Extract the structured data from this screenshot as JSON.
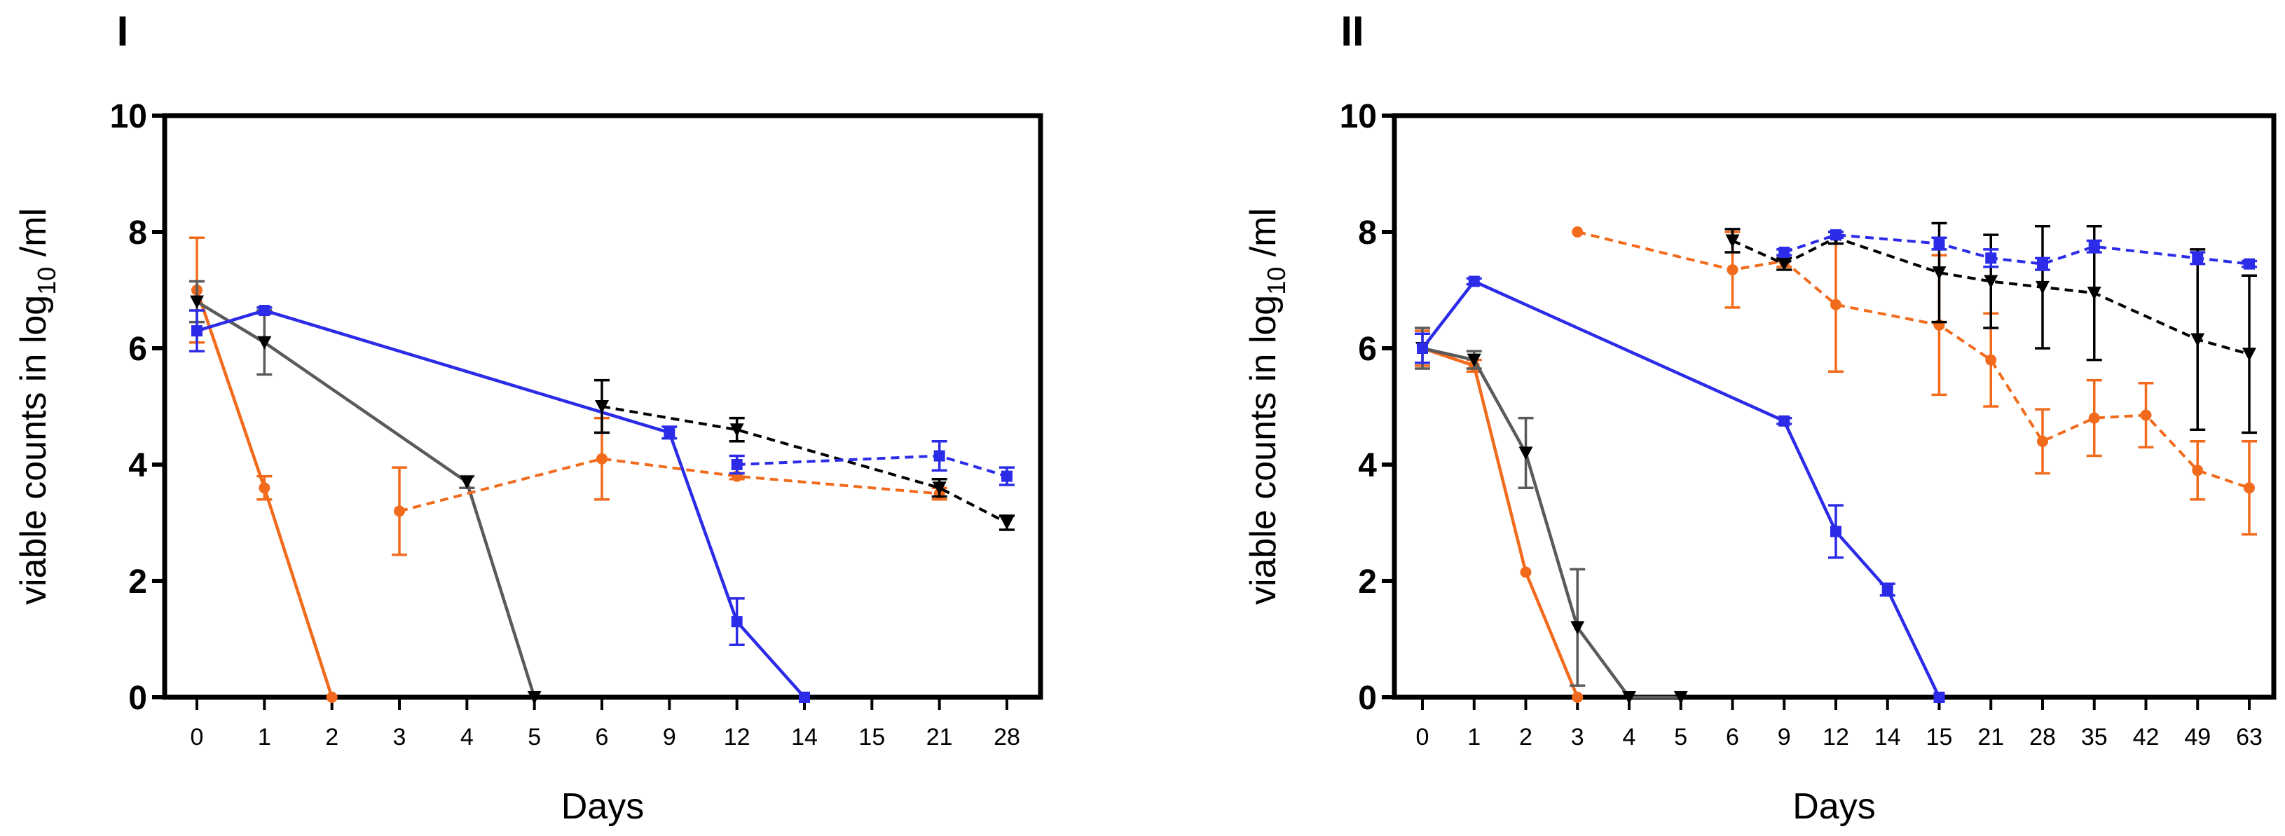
{
  "chart_data": [
    {
      "type": "line",
      "panel_label": "I",
      "xlabel": "Days",
      "ylabel_prefix": "viable counts in log",
      "ylabel_sub": "10",
      "ylabel_suffix": " /ml",
      "ylim": [
        0,
        10
      ],
      "yticks": [
        "0",
        "2",
        "4",
        "6",
        "8",
        "10"
      ],
      "categories": [
        "0",
        "1",
        "2",
        "3",
        "4",
        "5",
        "6",
        "9",
        "12",
        "14",
        "15",
        "21",
        "28"
      ],
      "series": [
        {
          "name": "orange-solid",
          "color": "#F26B1D",
          "dash": false,
          "marker": "circle",
          "points": [
            {
              "x": "0",
              "y": 7.0,
              "err": 0.9
            },
            {
              "x": "1",
              "y": 3.6,
              "err": 0.2
            },
            {
              "x": "2",
              "y": 0.0,
              "err": 0
            }
          ]
        },
        {
          "name": "gray-solid",
          "color": "#5a5a5a",
          "dash": false,
          "marker": "triangle",
          "points": [
            {
              "x": "0",
              "y": 6.8,
              "err": 0.35
            },
            {
              "x": "1",
              "y": 6.1,
              "err": 0.55
            },
            {
              "x": "4",
              "y": 3.7,
              "err": 0.1
            },
            {
              "x": "5",
              "y": 0.0,
              "err": 0
            }
          ]
        },
        {
          "name": "blue-solid",
          "color": "#2B2BE8",
          "dash": false,
          "marker": "square",
          "points": [
            {
              "x": "0",
              "y": 6.3,
              "err": 0.35
            },
            {
              "x": "1",
              "y": 6.65,
              "err": 0.05
            },
            {
              "x": "9",
              "y": 4.55,
              "err": 0.1
            },
            {
              "x": "12",
              "y": 1.3,
              "err": 0.4
            },
            {
              "x": "14",
              "y": 0.0,
              "err": 0
            }
          ]
        },
        {
          "name": "orange-dashed",
          "color": "#F26B1D",
          "dash": true,
          "marker": "circle",
          "points": [
            {
              "x": "3",
              "y": 3.2,
              "err": 0.75
            },
            {
              "x": "6",
              "y": 4.1,
              "err": 0.7
            },
            {
              "x": "12",
              "y": 3.8,
              "err": 0.05
            },
            {
              "x": "21",
              "y": 3.5,
              "err": 0.1
            }
          ]
        },
        {
          "name": "black-dashed",
          "color": "#000000",
          "dash": true,
          "marker": "triangle",
          "points": [
            {
              "x": "6",
              "y": 5.0,
              "err": 0.45
            },
            {
              "x": "12",
              "y": 4.6,
              "err": 0.2
            },
            {
              "x": "21",
              "y": 3.6,
              "err": 0.15
            },
            {
              "x": "28",
              "y": 3.0,
              "err": 0.12
            }
          ]
        },
        {
          "name": "blue-dashed",
          "color": "#2B2BE8",
          "dash": true,
          "marker": "square",
          "points": [
            {
              "x": "12",
              "y": 4.0,
              "err": 0.15
            },
            {
              "x": "21",
              "y": 4.15,
              "err": 0.25
            },
            {
              "x": "28",
              "y": 3.8,
              "err": 0.15
            }
          ]
        }
      ]
    },
    {
      "type": "line",
      "panel_label": "II",
      "xlabel": "Days",
      "ylabel_prefix": "viable counts in log",
      "ylabel_sub": "10",
      "ylabel_suffix": " /ml",
      "ylim": [
        0,
        10
      ],
      "yticks": [
        "0",
        "2",
        "4",
        "6",
        "8",
        "10"
      ],
      "categories": [
        "0",
        "1",
        "2",
        "3",
        "4",
        "5",
        "6",
        "9",
        "12",
        "14",
        "15",
        "21",
        "28",
        "35",
        "42",
        "49",
        "63"
      ],
      "series": [
        {
          "name": "orange-solid",
          "color": "#F26B1D",
          "dash": false,
          "marker": "circle",
          "points": [
            {
              "x": "0",
              "y": 6.0,
              "err": 0.3
            },
            {
              "x": "1",
              "y": 5.7,
              "err": 0.1
            },
            {
              "x": "2",
              "y": 2.15,
              "err": 0
            },
            {
              "x": "3",
              "y": 0.0,
              "err": 0
            }
          ]
        },
        {
          "name": "gray-solid",
          "color": "#5a5a5a",
          "dash": false,
          "marker": "triangle",
          "points": [
            {
              "x": "0",
              "y": 6.0,
              "err": 0.35
            },
            {
              "x": "1",
              "y": 5.8,
              "err": 0.15
            },
            {
              "x": "2",
              "y": 4.2,
              "err": 0.6
            },
            {
              "x": "3",
              "y": 1.2,
              "err": 1.0
            },
            {
              "x": "4",
              "y": 0.0,
              "err": 0
            },
            {
              "x": "5",
              "y": 0.0,
              "err": 0
            }
          ]
        },
        {
          "name": "blue-solid",
          "color": "#2B2BE8",
          "dash": false,
          "marker": "square",
          "points": [
            {
              "x": "0",
              "y": 6.0,
              "err": 0.25
            },
            {
              "x": "1",
              "y": 7.15,
              "err": 0.05
            },
            {
              "x": "9",
              "y": 4.75,
              "err": 0.05
            },
            {
              "x": "12",
              "y": 2.85,
              "err": 0.45
            },
            {
              "x": "14",
              "y": 1.85,
              "err": 0.1
            },
            {
              "x": "15",
              "y": 0.0,
              "err": 0
            }
          ]
        },
        {
          "name": "orange-dashed",
          "color": "#F26B1D",
          "dash": true,
          "marker": "circle",
          "points": [
            {
              "x": "3",
              "y": 8.0,
              "err": 0
            },
            {
              "x": "6",
              "y": 7.35,
              "err": 0.65
            },
            {
              "x": "9",
              "y": 7.5,
              "err": 0.1
            },
            {
              "x": "12",
              "y": 6.75,
              "err": 1.15
            },
            {
              "x": "15",
              "y": 6.4,
              "err": 1.2
            },
            {
              "x": "21",
              "y": 5.8,
              "err": 0.8
            },
            {
              "x": "28",
              "y": 4.4,
              "err": 0.55
            },
            {
              "x": "35",
              "y": 4.8,
              "err": 0.65
            },
            {
              "x": "42",
              "y": 4.85,
              "err": 0.55
            },
            {
              "x": "49",
              "y": 3.9,
              "err": 0.5
            },
            {
              "x": "63",
              "y": 3.6,
              "err": 0.8
            }
          ]
        },
        {
          "name": "black-dashed",
          "color": "#000000",
          "dash": true,
          "marker": "triangle",
          "points": [
            {
              "x": "6",
              "y": 7.85,
              "err": 0.2
            },
            {
              "x": "9",
              "y": 7.45,
              "err": 0.1
            },
            {
              "x": "12",
              "y": 7.9,
              "err": 0.1
            },
            {
              "x": "15",
              "y": 7.3,
              "err": 0.85
            },
            {
              "x": "21",
              "y": 7.15,
              "err": 0.8
            },
            {
              "x": "28",
              "y": 7.05,
              "err": 1.05
            },
            {
              "x": "35",
              "y": 6.95,
              "err": 1.15
            },
            {
              "x": "49",
              "y": 6.15,
              "err": 1.55
            },
            {
              "x": "63",
              "y": 5.9,
              "err": 1.35
            }
          ]
        },
        {
          "name": "blue-dashed",
          "color": "#2B2BE8",
          "dash": true,
          "marker": "square",
          "points": [
            {
              "x": "9",
              "y": 7.65,
              "err": 0.05
            },
            {
              "x": "12",
              "y": 7.95,
              "err": 0.05
            },
            {
              "x": "15",
              "y": 7.8,
              "err": 0.1
            },
            {
              "x": "21",
              "y": 7.55,
              "err": 0.15
            },
            {
              "x": "28",
              "y": 7.45,
              "err": 0.1
            },
            {
              "x": "35",
              "y": 7.75,
              "err": 0.1
            },
            {
              "x": "49",
              "y": 7.55,
              "err": 0.1
            },
            {
              "x": "63",
              "y": 7.45,
              "err": 0.05
            }
          ]
        }
      ]
    }
  ]
}
